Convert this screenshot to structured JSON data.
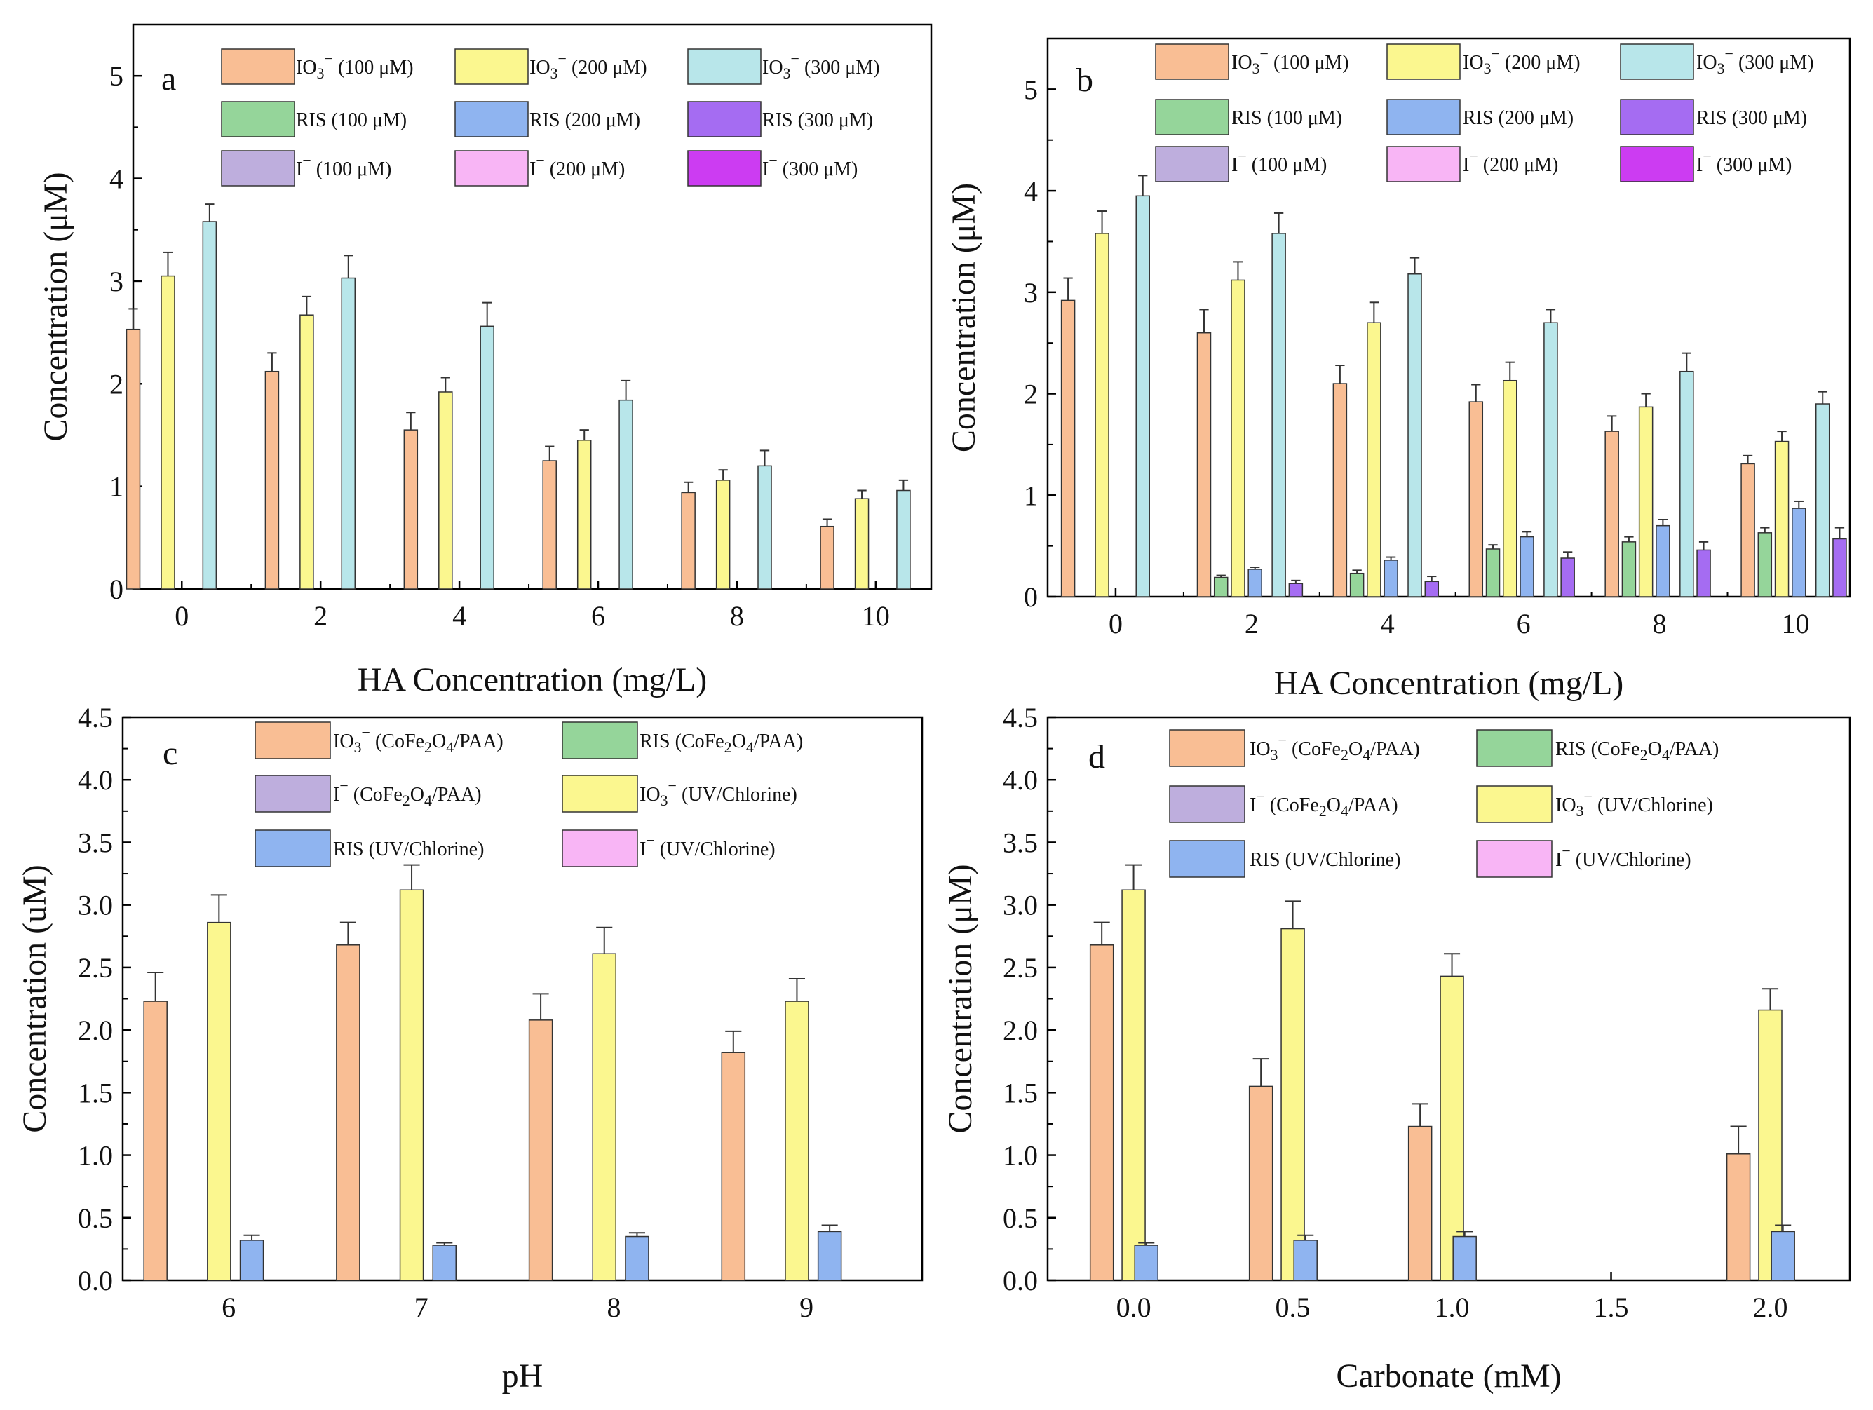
{
  "colors": {
    "io3_100": "#F9BE94",
    "io3_200": "#FBF78F",
    "io3_300": "#B8E6EA",
    "ris_100": "#95D59A",
    "ris_200": "#8FB4F0",
    "ris_300": "#A56CF2",
    "i_100": "#BEAEDD",
    "i_200": "#F8B5F5",
    "i_300": "#CC3CF2"
  },
  "chart_data": [
    {
      "panel": "a",
      "type": "bar",
      "xlabel": "HA Concentration (mg/L)",
      "ylabel": "Concentration (μM)",
      "x": [
        0,
        2,
        4,
        6,
        8,
        10
      ],
      "ylim": [
        0,
        5.5
      ],
      "yticks": [
        0,
        1,
        2,
        3,
        4,
        5
      ],
      "legend": "top-right",
      "series": [
        {
          "key": "io3_100",
          "name": "IO3⁻ (100 μM)",
          "values": [
            2.53,
            2.12,
            1.55,
            1.25,
            0.94,
            0.61
          ],
          "errors": [
            0.2,
            0.18,
            0.17,
            0.14,
            0.1,
            0.07
          ]
        },
        {
          "key": "io3_200",
          "name": "IO3⁻ (200 μM)",
          "values": [
            3.05,
            2.67,
            1.92,
            1.45,
            1.06,
            0.88
          ],
          "errors": [
            0.23,
            0.18,
            0.14,
            0.1,
            0.1,
            0.08
          ]
        },
        {
          "key": "io3_300",
          "name": "IO3⁻ (300 μM)",
          "values": [
            3.58,
            3.03,
            2.56,
            1.84,
            1.2,
            0.96
          ],
          "errors": [
            0.17,
            0.22,
            0.23,
            0.19,
            0.15,
            0.1
          ]
        },
        {
          "key": "ris_100",
          "name": "RIS (100 μM)",
          "values": [
            0,
            0,
            0,
            0,
            0,
            0
          ],
          "errors": [
            0,
            0,
            0,
            0,
            0,
            0
          ]
        },
        {
          "key": "ris_200",
          "name": "RIS (200 μM)",
          "values": [
            0,
            0,
            0,
            0,
            0,
            0
          ],
          "errors": [
            0,
            0,
            0,
            0,
            0,
            0
          ]
        },
        {
          "key": "ris_300",
          "name": "RIS (300 μM)",
          "values": [
            0,
            0,
            0,
            0,
            0,
            0
          ],
          "errors": [
            0,
            0,
            0,
            0,
            0,
            0
          ]
        },
        {
          "key": "i_100",
          "name": "I⁻ (100 μM)",
          "values": [
            0,
            0,
            0,
            0,
            0,
            0
          ],
          "errors": [
            0,
            0,
            0,
            0,
            0,
            0
          ]
        },
        {
          "key": "i_200",
          "name": "I⁻ (200 μM)",
          "values": [
            0,
            0,
            0,
            0,
            0,
            0
          ],
          "errors": [
            0,
            0,
            0,
            0,
            0,
            0
          ]
        },
        {
          "key": "i_300",
          "name": "I⁻ (300 μM)",
          "values": [
            0,
            0,
            0,
            0,
            0,
            0
          ],
          "errors": [
            0,
            0,
            0,
            0,
            0,
            0
          ]
        }
      ]
    },
    {
      "panel": "b",
      "type": "bar",
      "xlabel": "HA Concentration (mg/L)",
      "ylabel": "Concentration (μM)",
      "x": [
        0,
        2,
        4,
        6,
        8,
        10
      ],
      "ylim": [
        0,
        5.5
      ],
      "yticks": [
        0,
        1,
        2,
        3,
        4,
        5
      ],
      "legend": "top-right",
      "series": [
        {
          "key": "io3_100",
          "name": "IO3⁻ (100 μM)",
          "values": [
            2.92,
            2.6,
            2.1,
            1.92,
            1.63,
            1.31
          ],
          "errors": [
            0.22,
            0.23,
            0.18,
            0.17,
            0.15,
            0.08
          ]
        },
        {
          "key": "ris_100",
          "name": "RIS (100 μM)",
          "values": [
            0,
            0.19,
            0.23,
            0.47,
            0.54,
            0.63
          ],
          "errors": [
            0,
            0.02,
            0.03,
            0.04,
            0.05,
            0.05
          ]
        },
        {
          "key": "io3_200",
          "name": "IO3⁻ (200 μM)",
          "values": [
            3.58,
            3.12,
            2.7,
            2.13,
            1.87,
            1.53
          ],
          "errors": [
            0.22,
            0.18,
            0.2,
            0.18,
            0.13,
            0.1
          ]
        },
        {
          "key": "ris_200",
          "name": "RIS (200 μM)",
          "values": [
            0,
            0.27,
            0.36,
            0.59,
            0.7,
            0.87
          ],
          "errors": [
            0,
            0.02,
            0.03,
            0.05,
            0.06,
            0.07
          ]
        },
        {
          "key": "io3_300",
          "name": "IO3⁻ (300 μM)",
          "values": [
            3.95,
            3.58,
            3.18,
            2.7,
            2.22,
            1.9
          ],
          "errors": [
            0.2,
            0.2,
            0.16,
            0.13,
            0.18,
            0.12
          ]
        },
        {
          "key": "ris_300",
          "name": "RIS (300 μM)",
          "values": [
            0,
            0.13,
            0.15,
            0.38,
            0.46,
            0.57
          ],
          "errors": [
            0,
            0.03,
            0.05,
            0.06,
            0.08,
            0.11
          ]
        },
        {
          "key": "i_100",
          "name": "I⁻ (100 μM)",
          "values": [
            0,
            0,
            0,
            0,
            0,
            0
          ],
          "errors": [
            0,
            0,
            0,
            0,
            0,
            0
          ]
        },
        {
          "key": "i_200",
          "name": "I⁻ (200 μM)",
          "values": [
            0,
            0,
            0,
            0,
            0,
            0
          ],
          "errors": [
            0,
            0,
            0,
            0,
            0,
            0
          ]
        },
        {
          "key": "i_300",
          "name": "I⁻ (300 μM)",
          "values": [
            0,
            0,
            0,
            0,
            0,
            0
          ],
          "errors": [
            0,
            0,
            0,
            0,
            0,
            0
          ]
        }
      ]
    },
    {
      "panel": "c",
      "type": "bar",
      "xlabel": "pH",
      "ylabel": "Concentration (uM)",
      "x": [
        6,
        7,
        8,
        9
      ],
      "ylim": [
        0,
        4.5
      ],
      "yticks": [
        0.0,
        0.5,
        1.0,
        1.5,
        2.0,
        2.5,
        3.0,
        3.5,
        4.0,
        4.5
      ],
      "legend": "top",
      "series": [
        {
          "key": "io3_100",
          "name": "IO3⁻ (CoFe2O4/PAA)",
          "values": [
            2.23,
            2.68,
            2.08,
            1.82
          ],
          "errors": [
            0.23,
            0.18,
            0.21,
            0.17
          ]
        },
        {
          "key": "ris_100",
          "name": "RIS (CoFe2O4/PAA)",
          "values": [
            0,
            0,
            0,
            0
          ],
          "errors": [
            0,
            0,
            0,
            0
          ]
        },
        {
          "key": "i_100",
          "name": "I⁻ (CoFe2O4/PAA)",
          "values": [
            0,
            0,
            0,
            0
          ],
          "errors": [
            0,
            0,
            0,
            0
          ]
        },
        {
          "key": "io3_200",
          "name": "IO3⁻ (UV/Chlorine)",
          "values": [
            2.86,
            3.12,
            2.61,
            2.23
          ],
          "errors": [
            0.22,
            0.2,
            0.21,
            0.18
          ]
        },
        {
          "key": "ris_200",
          "name": "RIS (UV/Chlorine)",
          "values": [
            0.32,
            0.28,
            0.35,
            0.39
          ],
          "errors": [
            0.04,
            0.02,
            0.03,
            0.05
          ]
        },
        {
          "key": "i_200",
          "name": "I⁻ (UV/Chlorine)",
          "values": [
            0,
            0,
            0,
            0
          ],
          "errors": [
            0,
            0,
            0,
            0
          ]
        }
      ]
    },
    {
      "panel": "d",
      "type": "bar",
      "xlabel": "Carbonate (mM)",
      "ylabel": "Concentration (μM)",
      "x": [
        0.0,
        0.5,
        1.0,
        1.5,
        2.0
      ],
      "ylim": [
        0,
        4.5
      ],
      "yticks": [
        0.0,
        0.5,
        1.0,
        1.5,
        2.0,
        2.5,
        3.0,
        3.5,
        4.0,
        4.5
      ],
      "legend": "top",
      "series": [
        {
          "key": "io3_100",
          "name": "IO3⁻ (CoFe2O4/PAA)",
          "values": [
            2.68,
            1.55,
            1.23,
            0,
            1.01
          ],
          "errors": [
            0.18,
            0.22,
            0.18,
            0,
            0.22
          ]
        },
        {
          "key": "ris_100",
          "name": "RIS (CoFe2O4/PAA)",
          "values": [
            0,
            0,
            0,
            0,
            0
          ],
          "errors": [
            0,
            0,
            0,
            0,
            0
          ]
        },
        {
          "key": "i_100",
          "name": "I⁻ (CoFe2O4/PAA)",
          "values": [
            0,
            0,
            0,
            0,
            0
          ],
          "errors": [
            0,
            0,
            0,
            0,
            0
          ]
        },
        {
          "key": "io3_200",
          "name": "IO3⁻ (UV/Chlorine)",
          "values": [
            3.12,
            2.81,
            2.43,
            0,
            2.16
          ],
          "errors": [
            0.2,
            0.22,
            0.18,
            0,
            0.17
          ]
        },
        {
          "key": "ris_200",
          "name": "RIS (UV/Chlorine)",
          "values": [
            0.28,
            0.32,
            0.35,
            0,
            0.39
          ],
          "errors": [
            0.02,
            0.04,
            0.04,
            0,
            0.05
          ]
        },
        {
          "key": "i_200",
          "name": "I⁻ (UV/Chlorine)",
          "values": [
            0,
            0,
            0,
            0,
            0
          ],
          "errors": [
            0,
            0,
            0,
            0,
            0
          ]
        }
      ]
    }
  ]
}
